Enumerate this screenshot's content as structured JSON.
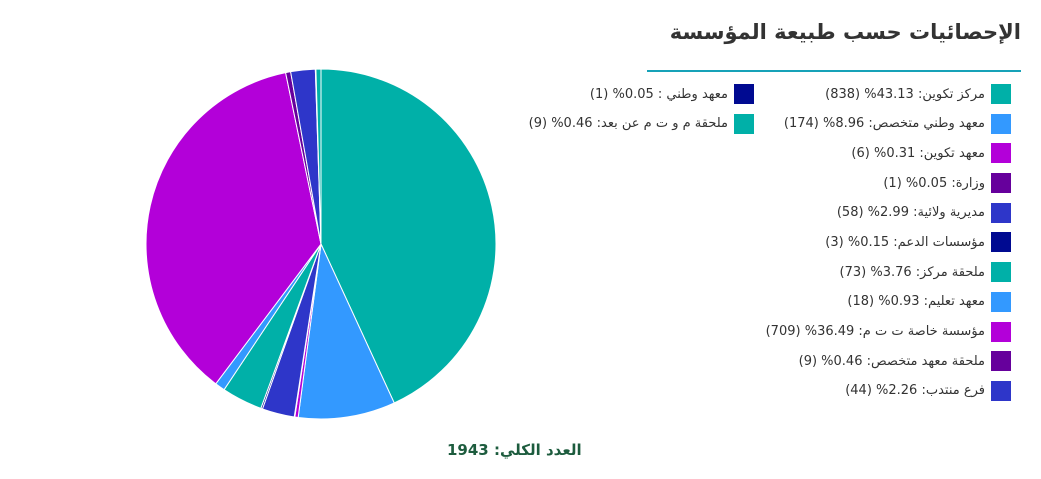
{
  "title": "الإحصائيات حسب طبيعة المؤسسة",
  "total_label": "العدد الكلي: 1943",
  "chart_data": {
    "type": "pie",
    "title": "الإحصائيات حسب طبيعة المؤسسة",
    "legend_placement": "right",
    "total": 1943,
    "slices": [
      {
        "label": "مركز تكوين: 43.13% (838)",
        "name": "مركز تكوين",
        "value": 838,
        "percent": 43.13,
        "color": "#00b0a8"
      },
      {
        "label": "معهد وطني متخصص: 8.96% (174)",
        "name": "معهد وطني متخصص",
        "value": 174,
        "percent": 8.96,
        "color": "#3399ff"
      },
      {
        "label": "معهد تكوين: 0.31% (6)",
        "name": "معهد تكوين",
        "value": 6,
        "percent": 0.31,
        "color": "#b300d9"
      },
      {
        "label": "وزارة: 0.05% (1)",
        "name": "وزارة",
        "value": 1,
        "percent": 0.05,
        "color": "#66009c"
      },
      {
        "label": "مديرية ولائية: 2.99% (58)",
        "name": "مديرية ولائية",
        "value": 58,
        "percent": 2.99,
        "color": "#2e36c9"
      },
      {
        "label": "مؤسسات الدعم: 0.15% (3)",
        "name": "مؤسسات الدعم",
        "value": 3,
        "percent": 0.15,
        "color": "#000a91"
      },
      {
        "label": "ملحقة مركز: 3.76% (73)",
        "name": "ملحقة مركز",
        "value": 73,
        "percent": 3.76,
        "color": "#00b0a8"
      },
      {
        "label": "معهد تعليم: 0.93% (18)",
        "name": "معهد تعليم",
        "value": 18,
        "percent": 0.93,
        "color": "#3399ff"
      },
      {
        "label": "مؤسسة خاصة ت ت م: 36.49% (709)",
        "name": "مؤسسة خاصة ت ت م",
        "value": 709,
        "percent": 36.49,
        "color": "#b300d9"
      },
      {
        "label": "ملحقة معهد متخصص: 0.46% (9)",
        "name": "ملحقة معهد متخصص",
        "value": 9,
        "percent": 0.46,
        "color": "#66009c"
      },
      {
        "label": "فرع منتدب: 2.26% (44)",
        "name": "فرع منتدب",
        "value": 44,
        "percent": 2.26,
        "color": "#2e36c9"
      },
      {
        "label": "معهد وطني : 0.05% (1)",
        "name": "معهد وطني",
        "value": 1,
        "percent": 0.05,
        "color": "#000a91"
      },
      {
        "label": "ملحقة م و ت م عن بعد: 0.46% (9)",
        "name": "ملحقة م و ت م عن بعد",
        "value": 9,
        "percent": 0.46,
        "color": "#00b0a8"
      }
    ]
  }
}
